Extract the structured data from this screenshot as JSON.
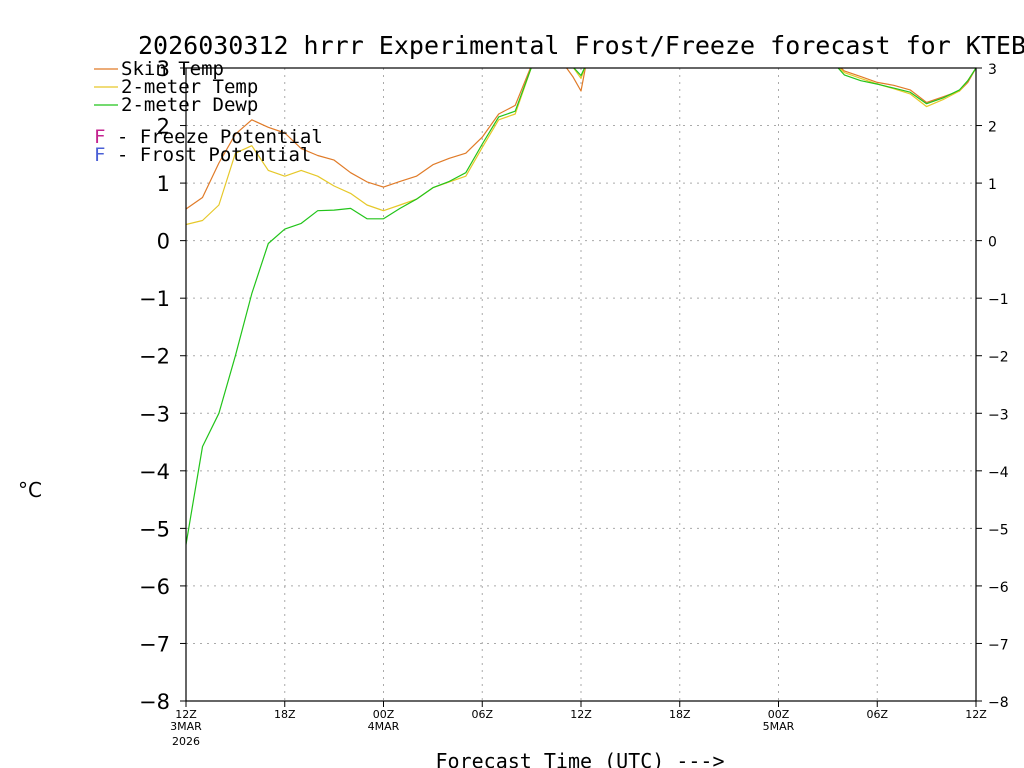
{
  "title": "2026030312 hrrr Experimental Frost/Freeze forecast for KTEB",
  "legend": [
    {
      "label": "Skin Temp",
      "color": "#e07b28"
    },
    {
      "label": "2-meter Temp",
      "color": "#e6c829"
    },
    {
      "label": "2-meter Dewp",
      "color": "#22c41a"
    },
    {
      "letter": "F",
      "text": " - Freeze Potential",
      "color": "#c4238f"
    },
    {
      "letter": "F",
      "text": " - Frost Potential",
      "color": "#4a5fd6"
    }
  ],
  "ylabel": "°C",
  "xlabel": "Forecast Time (UTC) --->",
  "chart_data": {
    "type": "line",
    "title": "2026030312 hrrr Experimental Frost/Freeze forecast for KTEB",
    "xlabel": "Forecast Time (UTC) --->",
    "ylabel": "°C",
    "ylim": [
      -8,
      3
    ],
    "xlim": [
      0,
      48
    ],
    "yticks": [
      -8,
      -7,
      -6,
      -5,
      -4,
      -3,
      -2,
      -1,
      0,
      1,
      2,
      3
    ],
    "xticks": [
      {
        "h": 0,
        "label": "12Z",
        "date": "3MAR",
        "year": "2026"
      },
      {
        "h": 6,
        "label": "18Z"
      },
      {
        "h": 12,
        "label": "00Z",
        "date": "4MAR"
      },
      {
        "h": 18,
        "label": "06Z"
      },
      {
        "h": 24,
        "label": "12Z"
      },
      {
        "h": 30,
        "label": "18Z"
      },
      {
        "h": 36,
        "label": "00Z",
        "date": "5MAR"
      },
      {
        "h": 42,
        "label": "06Z"
      },
      {
        "h": 48,
        "label": "12Z"
      }
    ],
    "grid": true,
    "series": [
      {
        "name": "Skin Temp",
        "color": "#e07b28",
        "points": [
          [
            0,
            0.55
          ],
          [
            1,
            0.75
          ],
          [
            2,
            1.35
          ],
          [
            3,
            1.85
          ],
          [
            4,
            2.1
          ],
          [
            5,
            1.97
          ],
          [
            6,
            1.87
          ],
          [
            7,
            1.6
          ],
          [
            8,
            1.48
          ],
          [
            9,
            1.4
          ],
          [
            10,
            1.18
          ],
          [
            11,
            1.02
          ],
          [
            12,
            0.93
          ],
          [
            13,
            1.03
          ],
          [
            14,
            1.12
          ],
          [
            15,
            1.32
          ],
          [
            16,
            1.43
          ],
          [
            17,
            1.52
          ],
          [
            18,
            1.8
          ],
          [
            19,
            2.2
          ],
          [
            20,
            2.35
          ],
          [
            21,
            3.05
          ],
          [
            22,
            3.1
          ],
          [
            23,
            3.05
          ],
          [
            23.5,
            2.85
          ],
          [
            24,
            2.6
          ],
          [
            24.3,
            3.05
          ],
          [
            25,
            3.2
          ],
          [
            39,
            3.2
          ],
          [
            40,
            2.95
          ],
          [
            41,
            2.85
          ],
          [
            42,
            2.75
          ],
          [
            43,
            2.7
          ],
          [
            44,
            2.62
          ],
          [
            45,
            2.4
          ],
          [
            46,
            2.5
          ],
          [
            47,
            2.6
          ],
          [
            47.5,
            2.75
          ],
          [
            48,
            3.0
          ]
        ]
      },
      {
        "name": "2-meter Temp",
        "color": "#e6c829",
        "points": [
          [
            0,
            0.28
          ],
          [
            1,
            0.35
          ],
          [
            2,
            0.62
          ],
          [
            3,
            1.52
          ],
          [
            4,
            1.65
          ],
          [
            5,
            1.22
          ],
          [
            6,
            1.12
          ],
          [
            7,
            1.22
          ],
          [
            8,
            1.12
          ],
          [
            9,
            0.95
          ],
          [
            10,
            0.82
          ],
          [
            11,
            0.62
          ],
          [
            12,
            0.52
          ],
          [
            13,
            0.62
          ],
          [
            14,
            0.72
          ],
          [
            15,
            0.92
          ],
          [
            16,
            1.02
          ],
          [
            17,
            1.12
          ],
          [
            18,
            1.62
          ],
          [
            19,
            2.1
          ],
          [
            20,
            2.2
          ],
          [
            21,
            3.02
          ],
          [
            22,
            3.12
          ],
          [
            23,
            3.12
          ],
          [
            23.5,
            3.02
          ],
          [
            24,
            2.82
          ],
          [
            24.3,
            3.05
          ],
          [
            25,
            3.2
          ],
          [
            39,
            3.2
          ],
          [
            40,
            2.92
          ],
          [
            41,
            2.82
          ],
          [
            42,
            2.72
          ],
          [
            43,
            2.64
          ],
          [
            44,
            2.55
          ],
          [
            45,
            2.33
          ],
          [
            46,
            2.45
          ],
          [
            47,
            2.6
          ],
          [
            47.5,
            2.78
          ],
          [
            48,
            3.0
          ]
        ]
      },
      {
        "name": "2-meter Dewp",
        "color": "#22c41a",
        "points": [
          [
            0,
            -5.28
          ],
          [
            1,
            -3.58
          ],
          [
            2,
            -3.0
          ],
          [
            3,
            -2.0
          ],
          [
            4,
            -0.92
          ],
          [
            5,
            -0.05
          ],
          [
            6,
            0.2
          ],
          [
            7,
            0.3
          ],
          [
            8,
            0.52
          ],
          [
            9,
            0.53
          ],
          [
            10,
            0.56
          ],
          [
            11,
            0.38
          ],
          [
            12,
            0.38
          ],
          [
            13,
            0.56
          ],
          [
            14,
            0.72
          ],
          [
            15,
            0.92
          ],
          [
            16,
            1.03
          ],
          [
            17,
            1.18
          ],
          [
            18,
            1.68
          ],
          [
            19,
            2.15
          ],
          [
            20,
            2.25
          ],
          [
            21,
            3.02
          ],
          [
            22,
            3.12
          ],
          [
            23,
            3.12
          ],
          [
            23.5,
            3.02
          ],
          [
            24,
            2.87
          ],
          [
            24.3,
            3.05
          ],
          [
            25,
            3.2
          ],
          [
            39,
            3.2
          ],
          [
            40,
            2.88
          ],
          [
            41,
            2.78
          ],
          [
            42,
            2.72
          ],
          [
            43,
            2.65
          ],
          [
            44,
            2.58
          ],
          [
            45,
            2.38
          ],
          [
            46,
            2.48
          ],
          [
            47,
            2.62
          ],
          [
            47.5,
            2.78
          ],
          [
            48,
            3.0
          ]
        ]
      }
    ]
  }
}
